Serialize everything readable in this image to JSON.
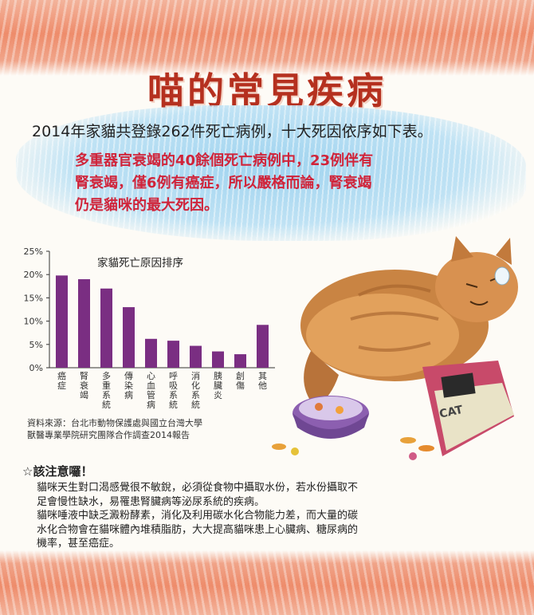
{
  "title": "喵的常見疾病",
  "headline": "2014年家貓共登錄262件死亡病例，十大死因依序如下表。",
  "highlight": {
    "lines": [
      "多重器官衰竭的40餘個死亡病例中，23例伴有",
      "腎衰竭，僅6例有癌症，所以嚴格而論，腎衰竭",
      "仍是貓咪的最大死因。"
    ],
    "color": "#d0243a"
  },
  "chart_data": {
    "type": "bar",
    "title": "家貓死亡原因排序",
    "categories": [
      "癌症",
      "腎衰竭",
      "多重系統",
      "傳染病",
      "心血管病",
      "呼吸系統",
      "消化系統",
      "胰臟炎",
      "創傷",
      "其他"
    ],
    "values": [
      19.8,
      19.0,
      17.0,
      13.0,
      6.2,
      5.8,
      4.7,
      3.5,
      2.9,
      9.2
    ],
    "yticks": [
      "0%",
      "5%",
      "10%",
      "15%",
      "20%",
      "25%"
    ],
    "ylim": [
      0,
      25
    ],
    "bar_color": "#7a2e82"
  },
  "source": {
    "line1": "資料來源：台北市動物保護處與國立台灣大學",
    "line2": "獸醫專業學院研究團隊合作調查2014報告"
  },
  "notice": {
    "heading": "☆該注意囉！",
    "lines": [
      "貓咪天生對口渴感覺很不敏銳，必須從食物中攝取水份，若水份攝取不",
      "足會慢性缺水，易罹患腎臟病等泌尿系統的疾病。",
      "貓咪唾液中缺乏澱粉酵素，消化及利用碳水化合物能力差，而大量的碳",
      "水化合物會在貓咪體內堆積脂肪，大大提高貓咪患上心臟病、糖尿病的",
      "機率，甚至癌症。"
    ]
  },
  "illustration": {
    "cat_icon": "fat-orange-cat-illustration",
    "bowl_icon": "purple-food-bowl-icon",
    "bag_icon": "cat-food-bag-icon",
    "bag_text": "CAT"
  }
}
